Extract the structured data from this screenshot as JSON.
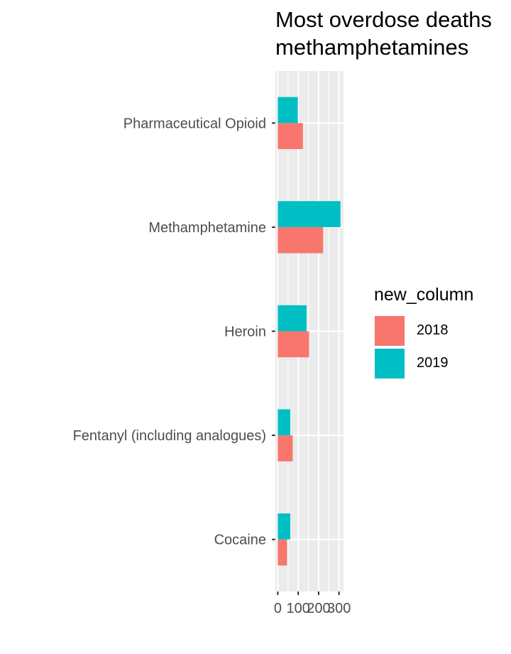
{
  "chart_data": {
    "type": "bar",
    "orientation": "horizontal",
    "title_lines": [
      "Most overdose deaths",
      "methamphetamines"
    ],
    "xlabel": "",
    "ylabel": "",
    "categories": [
      "Pharmaceutical Opioid",
      "Methamphetamine",
      "Heroin",
      "Fentanyl (including analogues)",
      "Cocaine"
    ],
    "series": [
      {
        "name": "2018",
        "color": "#F8766D",
        "values": [
          123,
          222,
          153,
          73,
          45
        ]
      },
      {
        "name": "2019",
        "color": "#00BFC4",
        "values": [
          98,
          307,
          141,
          61,
          61
        ]
      }
    ],
    "xlim": [
      -12,
      322
    ],
    "xticks": [
      0,
      100,
      200,
      300
    ],
    "xtick_labels": [
      "0",
      "100",
      "200",
      "300"
    ],
    "grid": true,
    "legend": {
      "title": "new_column",
      "placement": "right",
      "entries": [
        "2018",
        "2019"
      ]
    }
  }
}
